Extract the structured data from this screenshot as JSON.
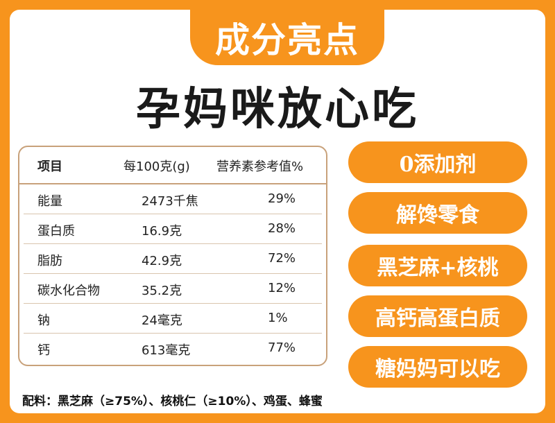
{
  "header": {
    "title": "成分亮点"
  },
  "headline": "孕妈咪放心吃",
  "table": {
    "headers": [
      "项目",
      "每100克(g)",
      "营养素参考值%"
    ],
    "rows": [
      [
        "能量",
        "2473千焦",
        "29%"
      ],
      [
        "蛋白质",
        "16.9克",
        "28%"
      ],
      [
        "脂肪",
        "42.9克",
        "72%"
      ],
      [
        "碳水化合物",
        "35.2克",
        "12%"
      ],
      [
        "钠",
        "24毫克",
        "1%"
      ],
      [
        "钙",
        "613毫克",
        "77%"
      ]
    ]
  },
  "features": [
    "0添加剂",
    "解馋零食",
    "黑芝麻+核桃",
    "高钙高蛋白质",
    "糖妈妈可以吃"
  ],
  "ingredients": "配料：黑芝麻（≥75%）、核桃仁（≥10%）、鸡蛋、蜂蜜",
  "colors": {
    "accent": "#f7941d",
    "border": "#c8a17a",
    "text": "#1a1a1a"
  }
}
